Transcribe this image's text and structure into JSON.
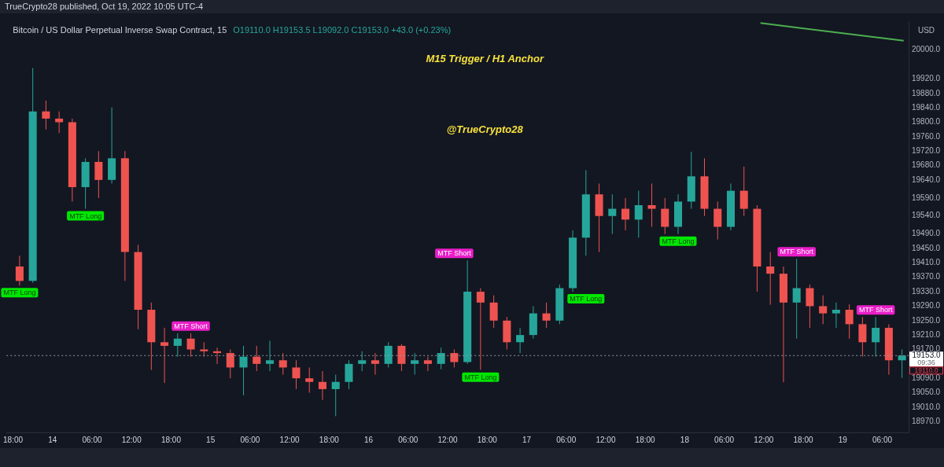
{
  "chart_data": {
    "type": "candlestick",
    "title": "Bitcoin / US Dollar Perpetual Inverse Swap Contract, 15",
    "subtitle": "O19110.0 H19153.5 L19092.0 C19153.0 +43.0 (+0.23%)",
    "ylabel": "USD",
    "x": [
      "2022-10-13T19:00",
      "2022-10-13T21:00",
      "2022-10-13T23:00",
      "2022-10-14T01:00",
      "2022-10-14T03:00",
      "2022-10-14T05:00",
      "2022-10-14T07:00",
      "2022-10-14T09:00",
      "2022-10-14T11:00",
      "2022-10-14T13:00",
      "2022-10-14T15:00",
      "2022-10-14T17:00",
      "2022-10-14T19:00",
      "2022-10-14T21:00",
      "2022-10-14T23:00",
      "2022-10-15T01:00",
      "2022-10-15T03:00",
      "2022-10-15T05:00",
      "2022-10-15T07:00",
      "2022-10-15T09:00",
      "2022-10-15T11:00",
      "2022-10-15T13:00",
      "2022-10-15T15:00",
      "2022-10-15T17:00",
      "2022-10-15T19:00",
      "2022-10-15T21:00",
      "2022-10-15T23:00",
      "2022-10-16T01:00",
      "2022-10-16T03:00",
      "2022-10-16T05:00",
      "2022-10-16T07:00",
      "2022-10-16T09:00",
      "2022-10-16T11:00",
      "2022-10-16T13:00",
      "2022-10-16T15:00",
      "2022-10-16T17:00",
      "2022-10-16T19:00",
      "2022-10-16T21:00",
      "2022-10-16T23:00",
      "2022-10-17T01:00",
      "2022-10-17T03:00",
      "2022-10-17T05:00",
      "2022-10-17T07:00",
      "2022-10-17T09:00",
      "2022-10-17T11:00",
      "2022-10-17T13:00",
      "2022-10-17T15:00",
      "2022-10-17T17:00",
      "2022-10-17T19:00",
      "2022-10-17T21:00",
      "2022-10-17T23:00",
      "2022-10-18T01:00",
      "2022-10-18T03:00",
      "2022-10-18T05:00",
      "2022-10-18T07:00",
      "2022-10-18T09:00",
      "2022-10-18T11:00",
      "2022-10-18T13:00",
      "2022-10-18T15:00",
      "2022-10-18T17:00",
      "2022-10-18T19:00",
      "2022-10-18T21:00",
      "2022-10-18T23:00",
      "2022-10-19T01:00",
      "2022-10-19T03:00",
      "2022-10-19T05:00",
      "2022-10-19T07:00",
      "2022-10-19T09:00"
    ],
    "ohlc": [
      [
        19400,
        19430,
        19347,
        19360
      ],
      [
        19360,
        19950,
        19355,
        19830
      ],
      [
        19830,
        19860,
        19780,
        19810
      ],
      [
        19810,
        19830,
        19770,
        19800
      ],
      [
        19800,
        19810,
        19580,
        19620
      ],
      [
        19620,
        19700,
        19560,
        19690
      ],
      [
        19690,
        19720,
        19590,
        19640
      ],
      [
        19640,
        19841,
        19630,
        19700
      ],
      [
        19700,
        19720,
        19360,
        19440
      ],
      [
        19440,
        19460,
        19226,
        19280
      ],
      [
        19280,
        19300,
        19113,
        19190
      ],
      [
        19190,
        19230,
        19077,
        19180
      ],
      [
        19180,
        19215,
        19150,
        19200
      ],
      [
        19200,
        19215,
        19150,
        19170
      ],
      [
        19170,
        19190,
        19150,
        19165
      ],
      [
        19165,
        19175,
        19130,
        19160
      ],
      [
        19160,
        19170,
        19090,
        19120
      ],
      [
        19120,
        19180,
        19043,
        19150
      ],
      [
        19150,
        19180,
        19110,
        19130
      ],
      [
        19130,
        19194,
        19110,
        19140
      ],
      [
        19140,
        19160,
        19100,
        19120
      ],
      [
        19120,
        19140,
        19060,
        19090
      ],
      [
        19090,
        19120,
        19050,
        19080
      ],
      [
        19080,
        19110,
        19030,
        19060
      ],
      [
        19060,
        19100,
        18985,
        19080
      ],
      [
        19080,
        19140,
        19060,
        19130
      ],
      [
        19130,
        19165,
        19110,
        19140
      ],
      [
        19140,
        19160,
        19100,
        19130
      ],
      [
        19130,
        19190,
        19120,
        19180
      ],
      [
        19180,
        19185,
        19110,
        19130
      ],
      [
        19130,
        19160,
        19100,
        19140
      ],
      [
        19140,
        19150,
        19110,
        19130
      ],
      [
        19130,
        19175,
        19115,
        19160
      ],
      [
        19160,
        19170,
        19120,
        19135
      ],
      [
        19135,
        19417,
        19130,
        19330
      ],
      [
        19330,
        19340,
        19113,
        19300
      ],
      [
        19300,
        19320,
        19230,
        19250
      ],
      [
        19250,
        19260,
        19170,
        19190
      ],
      [
        19190,
        19230,
        19160,
        19210
      ],
      [
        19210,
        19290,
        19200,
        19270
      ],
      [
        19270,
        19300,
        19230,
        19250
      ],
      [
        19250,
        19350,
        19240,
        19340
      ],
      [
        19340,
        19500,
        19330,
        19480
      ],
      [
        19480,
        19667,
        19430,
        19600
      ],
      [
        19600,
        19630,
        19440,
        19540
      ],
      [
        19540,
        19600,
        19490,
        19560
      ],
      [
        19560,
        19590,
        19500,
        19530
      ],
      [
        19530,
        19610,
        19480,
        19570
      ],
      [
        19570,
        19630,
        19510,
        19560
      ],
      [
        19560,
        19590,
        19490,
        19510
      ],
      [
        19510,
        19600,
        19490,
        19580
      ],
      [
        19580,
        19718,
        19560,
        19650
      ],
      [
        19650,
        19700,
        19540,
        19560
      ],
      [
        19560,
        19580,
        19475,
        19510
      ],
      [
        19510,
        19630,
        19500,
        19610
      ],
      [
        19610,
        19677,
        19540,
        19560
      ],
      [
        19560,
        19570,
        19330,
        19400
      ],
      [
        19400,
        19440,
        19294,
        19380
      ],
      [
        19380,
        19400,
        19079,
        19300
      ],
      [
        19300,
        19421,
        19200,
        19340
      ],
      [
        19340,
        19350,
        19230,
        19290
      ],
      [
        19290,
        19320,
        19240,
        19270
      ],
      [
        19270,
        19300,
        19230,
        19280
      ],
      [
        19280,
        19295,
        19200,
        19240
      ],
      [
        19240,
        19260,
        19150,
        19190
      ],
      [
        19190,
        19260,
        19150,
        19230
      ],
      [
        19230,
        19240,
        19100,
        19140
      ],
      [
        19140,
        19170,
        19091,
        19153
      ]
    ],
    "series": [
      {
        "type": "line",
        "color": "#4caf50",
        "x": [
          "2022-10-18T11:30",
          "2022-10-19T09:15"
        ],
        "values": [
          20075,
          20026
        ]
      }
    ],
    "xlim": [
      "2022-10-13T17:00",
      "2022-10-19T10:00"
    ],
    "xticks": [
      {
        "value": "2022-10-13T18:00",
        "label": "18:00"
      },
      {
        "value": "2022-10-14T00:00",
        "label": "14"
      },
      {
        "value": "2022-10-14T06:00",
        "label": "06:00"
      },
      {
        "value": "2022-10-14T12:00",
        "label": "12:00"
      },
      {
        "value": "2022-10-14T18:00",
        "label": "18:00"
      },
      {
        "value": "2022-10-15T00:00",
        "label": "15"
      },
      {
        "value": "2022-10-15T06:00",
        "label": "06:00"
      },
      {
        "value": "2022-10-15T12:00",
        "label": "12:00"
      },
      {
        "value": "2022-10-15T18:00",
        "label": "18:00"
      },
      {
        "value": "2022-10-16T00:00",
        "label": "16"
      },
      {
        "value": "2022-10-16T06:00",
        "label": "06:00"
      },
      {
        "value": "2022-10-16T12:00",
        "label": "12:00"
      },
      {
        "value": "2022-10-16T18:00",
        "label": "18:00"
      },
      {
        "value": "2022-10-17T00:00",
        "label": "17"
      },
      {
        "value": "2022-10-17T06:00",
        "label": "06:00"
      },
      {
        "value": "2022-10-17T12:00",
        "label": "12:00"
      },
      {
        "value": "2022-10-17T18:00",
        "label": "18:00"
      },
      {
        "value": "2022-10-18T00:00",
        "label": "18"
      },
      {
        "value": "2022-10-18T06:00",
        "label": "06:00"
      },
      {
        "value": "2022-10-18T12:00",
        "label": "12:00"
      },
      {
        "value": "2022-10-18T18:00",
        "label": "18:00"
      },
      {
        "value": "2022-10-19T00:00",
        "label": "19"
      },
      {
        "value": "2022-10-19T06:00",
        "label": "06:00"
      }
    ],
    "ylim": [
      18940,
      20080
    ],
    "yticks": [
      {
        "value": 18970,
        "label": "18970.0"
      },
      {
        "value": 19010,
        "label": "19010.0"
      },
      {
        "value": 19050,
        "label": "19050.0"
      },
      {
        "value": 19090,
        "label": "19090.0"
      },
      {
        "value": 19170,
        "label": "19170.0"
      },
      {
        "value": 19210,
        "label": "19210.0"
      },
      {
        "value": 19250,
        "label": "19250.0"
      },
      {
        "value": 19290,
        "label": "19290.0"
      },
      {
        "value": 19330,
        "label": "19330.0"
      },
      {
        "value": 19370,
        "label": "19370.0"
      },
      {
        "value": 19410,
        "label": "19410.0"
      },
      {
        "value": 19450,
        "label": "19450.0"
      },
      {
        "value": 19490,
        "label": "19490.0"
      },
      {
        "value": 19540,
        "label": "19540.0"
      },
      {
        "value": 19590,
        "label": "19590.0"
      },
      {
        "value": 19640,
        "label": "19640.0"
      },
      {
        "value": 19680,
        "label": "19680.0"
      },
      {
        "value": 19720,
        "label": "19720.0"
      },
      {
        "value": 19760,
        "label": "19760.0"
      },
      {
        "value": 19800,
        "label": "19800.0"
      },
      {
        "value": 19840,
        "label": "19840.0"
      },
      {
        "value": 19880,
        "label": "19880.0"
      },
      {
        "value": 19920,
        "label": "19920.0"
      },
      {
        "value": 20000,
        "label": "20000.0"
      }
    ],
    "ref_lines": [
      {
        "axis": "y",
        "value": 19153,
        "label": "19153.0",
        "color": "#9598a1",
        "line_style": "dotted"
      }
    ],
    "annotations": [
      "TrueCrypto28 published, Oct 19, 2022 10:05 UTC-4",
      "M15 Trigger / H1 Anchor",
      "@TrueCrypto28",
      "09:36",
      "MTF Long",
      "MTF Long",
      "MTF Short",
      "MTF Short",
      "MTF Long",
      "MTF Long",
      "MTF Long",
      "MTF Short",
      "MTF Short",
      "19110.0"
    ]
  }
}
